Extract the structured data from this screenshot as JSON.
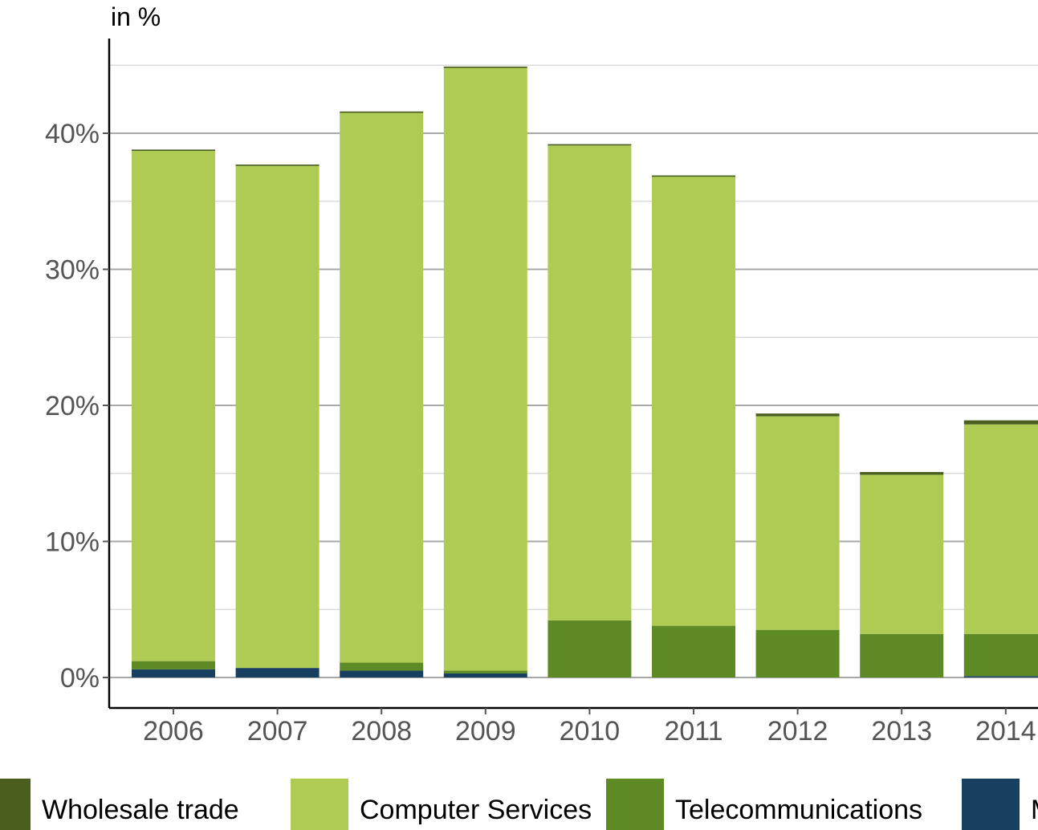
{
  "chart_data": {
    "type": "bar",
    "stacked": true,
    "y_unit_label": "in %",
    "categories": [
      "2006",
      "2007",
      "2008",
      "2009",
      "2010",
      "2011",
      "2012",
      "2013",
      "2014"
    ],
    "series": [
      {
        "name": "M",
        "color": "#173f5f",
        "values": [
          0.6,
          0.7,
          0.5,
          0.3,
          0.0,
          0.0,
          0.0,
          0.0,
          0.1
        ]
      },
      {
        "name": "Telecommunications",
        "color": "#5e8a26",
        "values": [
          0.6,
          0.0,
          0.6,
          0.2,
          4.2,
          3.8,
          3.5,
          3.2,
          3.1
        ]
      },
      {
        "name": "Computer Services",
        "color": "#aecb54",
        "values": [
          37.5,
          36.9,
          40.4,
          44.3,
          34.9,
          33.0,
          15.7,
          11.7,
          15.4
        ]
      },
      {
        "name": "Wholesale trade",
        "color": "#4a5e1e",
        "values": [
          0.1,
          0.1,
          0.1,
          0.1,
          0.1,
          0.1,
          0.2,
          0.2,
          0.3
        ]
      }
    ],
    "legend_order": [
      "Wholesale trade",
      "Computer Services",
      "Telecommunications",
      "M"
    ],
    "ylim": [
      0,
      45
    ],
    "yticks": [
      0,
      10,
      20,
      30,
      40
    ],
    "ytick_labels": [
      "0%",
      "10%",
      "20%",
      "30%",
      "40%"
    ],
    "grid": true,
    "legend_position": "bottom"
  }
}
